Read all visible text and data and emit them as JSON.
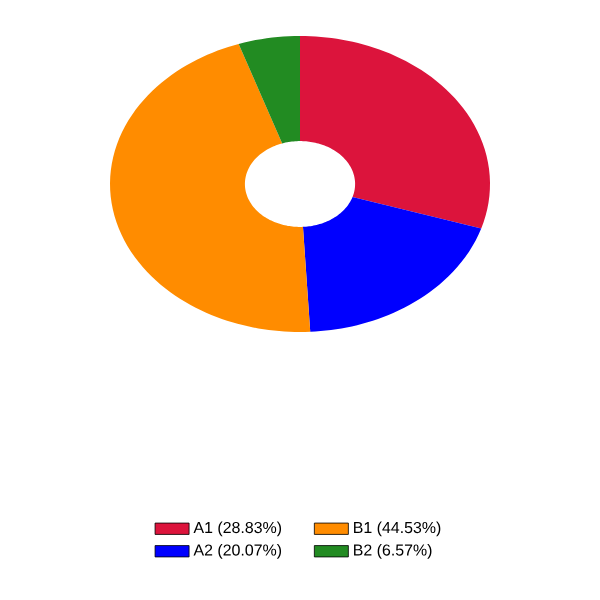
{
  "chart_data": {
    "type": "donut",
    "categories": [
      "A1 (28.83%)",
      "A2 (20.07%)",
      "B1 (44.53%)",
      "B2 (6.57%)"
    ],
    "values": [
      28.83,
      20.07,
      44.53,
      6.57
    ],
    "colors": [
      "#dc143c",
      "#0000ff",
      "#ff8c00",
      "#228b22"
    ],
    "legend": "bottom"
  }
}
